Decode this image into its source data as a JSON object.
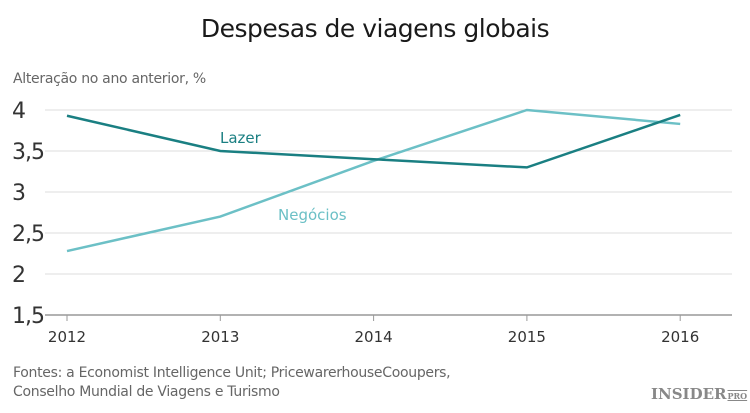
{
  "chart_data": {
    "type": "line",
    "title": "Despesas de viagens globais",
    "ylabel": "Alteração no ano anterior, %",
    "xlabel": "",
    "categories": [
      "2012",
      "2013",
      "2014",
      "2015",
      "2016"
    ],
    "yticks": [
      "1,5",
      "2",
      "2,5",
      "3",
      "3,5",
      "4"
    ],
    "ylim": [
      1.5,
      4
    ],
    "grid": true,
    "series": [
      {
        "name": "Lazer",
        "color": "#1a7f82",
        "values": [
          3.93,
          3.5,
          3.4,
          3.3,
          3.94
        ]
      },
      {
        "name": "Negócios",
        "color": "#6cc0c6",
        "values": [
          2.28,
          2.7,
          3.38,
          4.0,
          3.83
        ]
      }
    ]
  },
  "sources": {
    "line1": "Fontes: a Economist Intelligence Unit; PricewarerhouseCooupers,",
    "line2": "Conselho Mundial de Viagens e Turismo"
  },
  "logo": {
    "main": "INSIDER",
    "sub": "PRO"
  }
}
